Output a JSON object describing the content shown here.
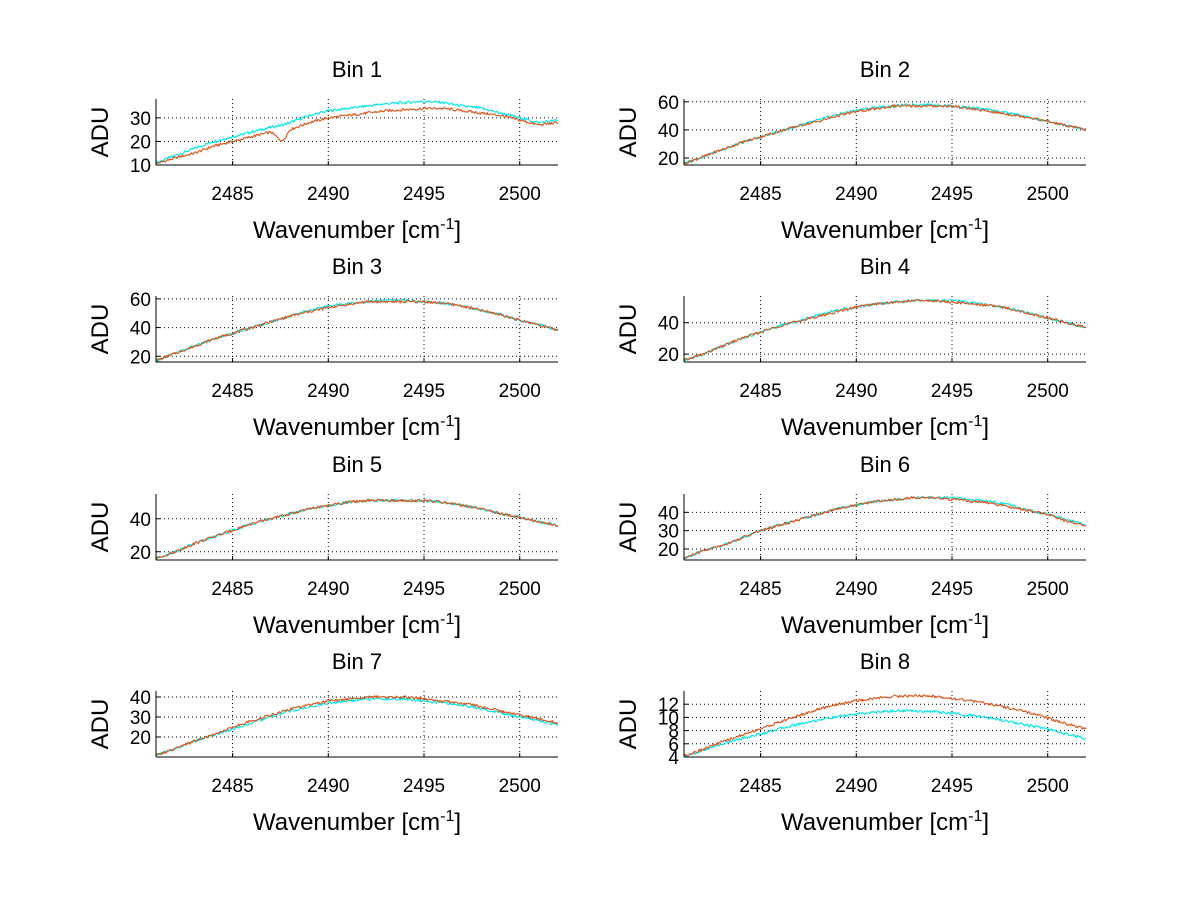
{
  "chart_data": [
    {
      "type": "line",
      "title": "Bin 1",
      "xlabel": "Wavenumber [cm",
      "xlabel_sup": "-1",
      "xlabel_end": "]",
      "ylabel": "ADU",
      "xlim": [
        2481,
        2502
      ],
      "ylim": [
        10,
        38
      ],
      "xticks": [
        2485,
        2490,
        2495,
        2500
      ],
      "yticks": [
        10,
        20,
        30
      ],
      "grid": true,
      "series": [
        {
          "color": "#00e5e5",
          "x": [
            2481,
            2482,
            2483,
            2484,
            2485,
            2486,
            2487,
            2487.6,
            2488,
            2489,
            2490,
            2491,
            2492,
            2493,
            2494,
            2495,
            2496,
            2497,
            2498,
            2499,
            2500,
            2501,
            2502
          ],
          "values": [
            11,
            14,
            17,
            20,
            22,
            24,
            26,
            27,
            28,
            31,
            33,
            34,
            35,
            36,
            36.5,
            37,
            36.5,
            35,
            34,
            32,
            30,
            28,
            29
          ]
        },
        {
          "color": "#d95319",
          "x": [
            2481,
            2482,
            2483,
            2484,
            2485,
            2486,
            2487,
            2487.6,
            2488,
            2489,
            2490,
            2491,
            2492,
            2493,
            2494,
            2495,
            2496,
            2497,
            2498,
            2499,
            2500,
            2501,
            2502
          ],
          "values": [
            10.5,
            13,
            15,
            18,
            20,
            22,
            24,
            20,
            25,
            28,
            30,
            31,
            32,
            33,
            33.5,
            34,
            34,
            33,
            32,
            31,
            29,
            27,
            28
          ]
        }
      ]
    },
    {
      "type": "line",
      "title": "Bin 2",
      "xlabel": "Wavenumber [cm",
      "xlabel_sup": "-1",
      "xlabel_end": "]",
      "ylabel": "ADU",
      "xlim": [
        2481,
        2502
      ],
      "ylim": [
        15,
        62
      ],
      "xticks": [
        2485,
        2490,
        2495,
        2500
      ],
      "yticks": [
        20,
        40,
        60
      ],
      "grid": true,
      "series": [
        {
          "color": "#00e5e5",
          "x": [
            2481,
            2482,
            2483,
            2484,
            2485,
            2486,
            2487,
            2488,
            2489,
            2490,
            2491,
            2492,
            2493,
            2494,
            2495,
            2496,
            2497,
            2498,
            2499,
            2500,
            2501,
            2502
          ],
          "values": [
            16,
            21,
            26,
            31,
            35,
            39,
            43,
            47,
            51,
            54,
            56,
            57,
            58,
            58,
            57,
            56,
            54,
            52,
            49,
            46,
            43,
            40
          ]
        },
        {
          "color": "#d95319",
          "x": [
            2481,
            2482,
            2483,
            2484,
            2485,
            2486,
            2487,
            2488,
            2489,
            2490,
            2491,
            2492,
            2493,
            2494,
            2495,
            2496,
            2497,
            2498,
            2499,
            2500,
            2501,
            2502
          ],
          "values": [
            16,
            21,
            26,
            31,
            35,
            39,
            43,
            46,
            50,
            53,
            55,
            57,
            57,
            57,
            57,
            55,
            53,
            51,
            49,
            46,
            43,
            40
          ]
        }
      ]
    },
    {
      "type": "line",
      "title": "Bin 3",
      "xlabel": "Wavenumber [cm",
      "xlabel_sup": "-1",
      "xlabel_end": "]",
      "ylabel": "ADU",
      "xlim": [
        2481,
        2502
      ],
      "ylim": [
        16,
        62
      ],
      "xticks": [
        2485,
        2490,
        2495,
        2500
      ],
      "yticks": [
        20,
        40,
        60
      ],
      "grid": true,
      "series": [
        {
          "color": "#00e5e5",
          "x": [
            2481,
            2482,
            2483,
            2484,
            2485,
            2486,
            2487,
            2488,
            2489,
            2490,
            2491,
            2492,
            2493,
            2494,
            2495,
            2496,
            2497,
            2498,
            2499,
            2500,
            2501,
            2502
          ],
          "values": [
            17,
            22,
            27,
            32,
            36,
            40,
            44,
            48,
            52,
            55,
            57,
            58,
            59,
            59,
            58,
            57,
            55,
            52,
            49,
            45,
            42,
            38
          ]
        },
        {
          "color": "#d95319",
          "x": [
            2481,
            2482,
            2483,
            2484,
            2485,
            2486,
            2487,
            2488,
            2489,
            2490,
            2491,
            2492,
            2493,
            2494,
            2495,
            2496,
            2497,
            2498,
            2499,
            2500,
            2501,
            2502
          ],
          "values": [
            17,
            22,
            27,
            32,
            36,
            40,
            44,
            48,
            51,
            54,
            56,
            58,
            58,
            58,
            58,
            57,
            55,
            52,
            49,
            45,
            42,
            38
          ]
        }
      ]
    },
    {
      "type": "line",
      "title": "Bin 4",
      "xlabel": "Wavenumber [cm",
      "xlabel_sup": "-1",
      "xlabel_end": "]",
      "ylabel": "ADU",
      "xlim": [
        2481,
        2502
      ],
      "ylim": [
        15,
        57
      ],
      "xticks": [
        2485,
        2490,
        2495,
        2500
      ],
      "yticks": [
        20,
        40
      ],
      "grid": true,
      "series": [
        {
          "color": "#00e5e5",
          "x": [
            2481,
            2482,
            2483,
            2484,
            2485,
            2486,
            2487,
            2488,
            2489,
            2490,
            2491,
            2492,
            2493,
            2494,
            2495,
            2496,
            2497,
            2498,
            2499,
            2500,
            2501,
            2502
          ],
          "values": [
            16,
            20,
            25,
            30,
            34,
            38,
            41,
            45,
            48,
            50,
            52,
            53,
            54,
            54,
            54,
            53,
            51,
            49,
            46,
            43,
            40,
            37
          ]
        },
        {
          "color": "#d95319",
          "x": [
            2481,
            2482,
            2483,
            2484,
            2485,
            2486,
            2487,
            2488,
            2489,
            2490,
            2491,
            2492,
            2493,
            2494,
            2495,
            2496,
            2497,
            2498,
            2499,
            2500,
            2501,
            2502
          ],
          "values": [
            16,
            20,
            25,
            30,
            34,
            38,
            41,
            44,
            47,
            50,
            52,
            53,
            54,
            54,
            53,
            52,
            51,
            49,
            46,
            43,
            40,
            37
          ]
        }
      ]
    },
    {
      "type": "line",
      "title": "Bin 5",
      "xlabel": "Wavenumber [cm",
      "xlabel_sup": "-1",
      "xlabel_end": "]",
      "ylabel": "ADU",
      "xlim": [
        2481,
        2502
      ],
      "ylim": [
        15,
        55
      ],
      "xticks": [
        2485,
        2490,
        2495,
        2500
      ],
      "yticks": [
        20,
        40
      ],
      "grid": true,
      "series": [
        {
          "color": "#00e5e5",
          "x": [
            2481,
            2482,
            2483,
            2484,
            2485,
            2486,
            2487,
            2488,
            2489,
            2490,
            2491,
            2492,
            2493,
            2494,
            2495,
            2496,
            2497,
            2498,
            2499,
            2500,
            2501,
            2502
          ],
          "values": [
            16,
            20,
            25,
            29,
            33,
            37,
            40,
            43,
            46,
            48,
            50,
            51,
            51,
            51,
            51,
            50,
            48,
            46,
            43,
            41,
            38,
            36
          ]
        },
        {
          "color": "#d95319",
          "x": [
            2481,
            2482,
            2483,
            2484,
            2485,
            2486,
            2487,
            2488,
            2489,
            2490,
            2491,
            2492,
            2493,
            2494,
            2495,
            2496,
            2497,
            2498,
            2499,
            2500,
            2501,
            2502
          ],
          "values": [
            16,
            20,
            25,
            29,
            33,
            37,
            40,
            43,
            46,
            48,
            50,
            51,
            51,
            51,
            51,
            50,
            48,
            46,
            43,
            41,
            38,
            36
          ]
        }
      ]
    },
    {
      "type": "line",
      "title": "Bin 6",
      "xlabel": "Wavenumber [cm",
      "xlabel_sup": "-1",
      "xlabel_end": "]",
      "ylabel": "ADU",
      "xlim": [
        2481,
        2502
      ],
      "ylim": [
        14,
        50
      ],
      "xticks": [
        2485,
        2490,
        2495,
        2500
      ],
      "yticks": [
        20,
        30,
        40
      ],
      "grid": true,
      "series": [
        {
          "color": "#00e5e5",
          "x": [
            2481,
            2482,
            2483,
            2484,
            2485,
            2486,
            2487,
            2488,
            2489,
            2490,
            2491,
            2492,
            2493,
            2494,
            2495,
            2496,
            2497,
            2498,
            2499,
            2500,
            2501,
            2502
          ],
          "values": [
            15,
            19,
            22,
            26,
            30,
            33,
            36,
            39,
            42,
            44,
            46,
            47,
            48,
            48,
            48,
            47,
            46,
            44,
            41,
            39,
            36,
            33
          ]
        },
        {
          "color": "#d95319",
          "x": [
            2481,
            2482,
            2483,
            2484,
            2485,
            2486,
            2487,
            2488,
            2489,
            2490,
            2491,
            2492,
            2493,
            2494,
            2495,
            2496,
            2497,
            2498,
            2499,
            2500,
            2501,
            2502
          ],
          "values": [
            15,
            19,
            22,
            26,
            30,
            33,
            36,
            39,
            42,
            44,
            46,
            47,
            48,
            48,
            47,
            46,
            45,
            43,
            41,
            39,
            35,
            33
          ]
        }
      ]
    },
    {
      "type": "line",
      "title": "Bin 7",
      "xlabel": "Wavenumber [cm",
      "xlabel_sup": "-1",
      "xlabel_end": "]",
      "ylabel": "ADU",
      "xlim": [
        2481,
        2502
      ],
      "ylim": [
        10,
        43
      ],
      "xticks": [
        2485,
        2490,
        2495,
        2500
      ],
      "yticks": [
        20,
        30,
        40
      ],
      "grid": true,
      "series": [
        {
          "color": "#00e5e5",
          "x": [
            2481,
            2482,
            2483,
            2484,
            2485,
            2486,
            2487,
            2488,
            2489,
            2490,
            2491,
            2492,
            2493,
            2494,
            2495,
            2496,
            2497,
            2498,
            2499,
            2500,
            2501,
            2502
          ],
          "values": [
            11,
            14,
            18,
            21,
            24,
            27,
            30,
            33,
            35,
            37,
            38,
            39,
            39,
            39,
            38,
            37,
            36,
            34,
            32,
            30,
            28,
            26
          ]
        },
        {
          "color": "#d95319",
          "x": [
            2481,
            2482,
            2483,
            2484,
            2485,
            2486,
            2487,
            2488,
            2489,
            2490,
            2491,
            2492,
            2493,
            2494,
            2495,
            2496,
            2497,
            2498,
            2499,
            2500,
            2501,
            2502
          ],
          "values": [
            11,
            14,
            18,
            21,
            25,
            28,
            31,
            34,
            36,
            38,
            39,
            40,
            40,
            40,
            39,
            38,
            37,
            35,
            33,
            31,
            29,
            27
          ]
        }
      ]
    },
    {
      "type": "line",
      "title": "Bin 8",
      "xlabel": "Wavenumber [cm",
      "xlabel_sup": "-1",
      "xlabel_end": "]",
      "ylabel": "ADU",
      "xlim": [
        2481,
        2502
      ],
      "ylim": [
        4,
        14
      ],
      "xticks": [
        2485,
        2490,
        2495,
        2500
      ],
      "yticks": [
        4,
        6,
        8,
        10,
        12
      ],
      "grid": true,
      "series": [
        {
          "color": "#00e5e5",
          "x": [
            2481,
            2482,
            2483,
            2484,
            2485,
            2486,
            2487,
            2488,
            2489,
            2490,
            2491,
            2492,
            2493,
            2494,
            2495,
            2496,
            2497,
            2498,
            2499,
            2500,
            2501,
            2502
          ],
          "values": [
            4,
            5,
            6,
            6.8,
            7.5,
            8.3,
            9,
            9.6,
            10.1,
            10.5,
            10.8,
            11,
            11,
            10.9,
            10.6,
            10.3,
            9.9,
            9.4,
            8.8,
            8.2,
            7.5,
            6.8
          ]
        },
        {
          "color": "#d95319",
          "x": [
            2481,
            2482,
            2483,
            2484,
            2485,
            2486,
            2487,
            2488,
            2489,
            2490,
            2491,
            2492,
            2493,
            2494,
            2495,
            2496,
            2497,
            2498,
            2499,
            2500,
            2501,
            2502
          ],
          "values": [
            4.2,
            5.2,
            6.3,
            7.3,
            8.3,
            9.3,
            10.3,
            11.2,
            12,
            12.5,
            12.9,
            13.2,
            13.3,
            13.2,
            12.9,
            12.5,
            12,
            11.4,
            10.7,
            9.9,
            9,
            8.3
          ]
        }
      ]
    }
  ]
}
